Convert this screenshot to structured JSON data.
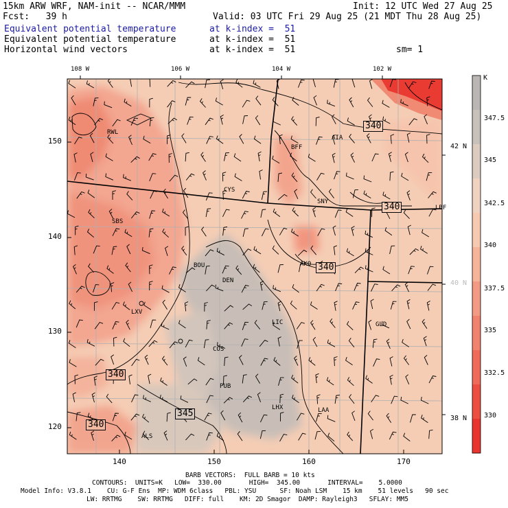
{
  "header": {
    "model": "15km ARW WRF, NAM-init -- NCAR/MMM",
    "init": "Init: 12 UTC Wed 27 Aug 25",
    "fcst": "Fcst:   39 h",
    "valid": "Valid: 03 UTC Fri 29 Aug 25 (21 MDT Thu 28 Aug 25)",
    "fields": [
      {
        "name": "Equivalent potential temperature",
        "level": "at k-index =  51",
        "color": "#1a1aa6"
      },
      {
        "name": "Equivalent potential temperature",
        "level": "at k-index =  51",
        "color": "#000000"
      },
      {
        "name": "Horizontal wind vectors",
        "level": "at k-index =  51",
        "color": "#000000"
      }
    ],
    "smoothing": "sm= 1"
  },
  "map": {
    "top_lon_labels": [
      "108 W",
      "106 W",
      "104 W",
      "102 W"
    ],
    "bottom_x_labels": [
      "140",
      "150",
      "160",
      "170"
    ],
    "left_y_labels": [
      "150",
      "140",
      "130",
      "120"
    ],
    "right_lat_labels": [
      "42 N",
      "40 N",
      "38 N"
    ],
    "contour_labels": [
      "340",
      "340",
      "340",
      "340",
      "340",
      "345"
    ],
    "cities": [
      "RWL",
      "BFF",
      "AIA",
      "CYS",
      "SNY",
      "LBF",
      "SBS",
      "BOU",
      "DEN",
      "AKO",
      "LXV",
      "LIC",
      "GLD",
      "COS",
      "PUB",
      "LHX",
      "LAA",
      "ALS"
    ]
  },
  "colorbar": {
    "unit": "K",
    "labels": [
      "347.5",
      "345",
      "342.5",
      "340",
      "337.5",
      "335",
      "332.5",
      "330"
    ],
    "colors": [
      "#b9b6b3",
      "#c8c0ba",
      "#dcccbf",
      "#efd2bf",
      "#f6c9b0",
      "#f5b39a",
      "#f39a84",
      "#f1826d",
      "#ef6a58",
      "#ec4e42",
      "#e93530"
    ]
  },
  "footer": {
    "barb": "BARB VECTORS:  FULL BARB = 10 kts",
    "contours": "CONTOURS:  UNITS=K   LOW=  330.00       HIGH=  345.00       INTERVAL=    5.0000",
    "model_info": "Model Info: V3.8.1    CU: G-F Ens  MP: WDM 6class   PBL: YSU      SF: Noah LSM    15 km    51 levels   90 sec",
    "model_info2": "LW: RRTMG    SW: RRTMG   DIFF: full    KM: 2D Smagor  DAMP: Rayleigh3   SFLAY: MM5"
  }
}
